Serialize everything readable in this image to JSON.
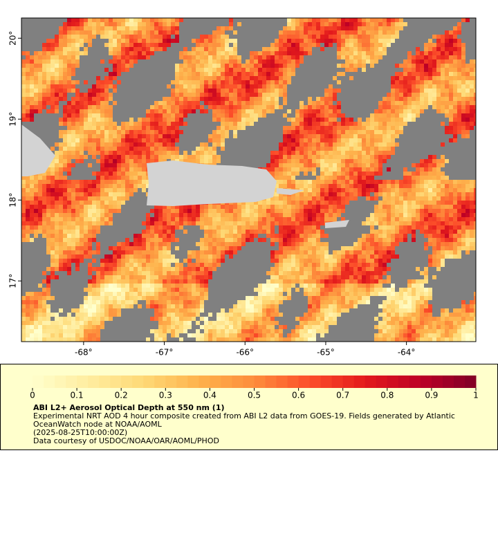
{
  "map": {
    "xlim": [
      -68.77,
      -63.14
    ],
    "ylim": [
      16.25,
      20.25
    ],
    "xticks": [
      {
        "value": -68,
        "label": "-68°"
      },
      {
        "value": -67,
        "label": "-67°"
      },
      {
        "value": -66,
        "label": "-66°"
      },
      {
        "value": -65,
        "label": "-65°"
      },
      {
        "value": -64,
        "label": "-64°"
      }
    ],
    "yticks": [
      {
        "value": 17,
        "label": "17°"
      },
      {
        "value": 18,
        "label": "18°"
      },
      {
        "value": 19,
        "label": "19°"
      },
      {
        "value": 20,
        "label": "20°"
      }
    ]
  },
  "colorbar": {
    "lim": [
      0,
      1
    ],
    "ticks": [
      0,
      0.1,
      0.2,
      0.3,
      0.4,
      0.5,
      0.6,
      0.7,
      0.8,
      0.9,
      1
    ],
    "colormap": [
      "#ffffcc",
      "#ffeda0",
      "#fed976",
      "#feb24c",
      "#fd8d3c",
      "#fc4e2a",
      "#e31a1c",
      "#bd0026",
      "#800026"
    ]
  },
  "legend": {
    "title": "ABI L2+ Aerosol Optical Depth at 550 nm (1)",
    "description": [
      "Experimental NRT AOD 4 hour composite created from ABI L2 data from GOES-19. Fields generated by Atlantic",
      "OceanWatch node at NOAA/AOML"
    ],
    "time": "(2025-08-25T10:00:00Z)",
    "credit": "Data courtesy of USDOC/NOAA/OAR/AOML/PHOD"
  }
}
